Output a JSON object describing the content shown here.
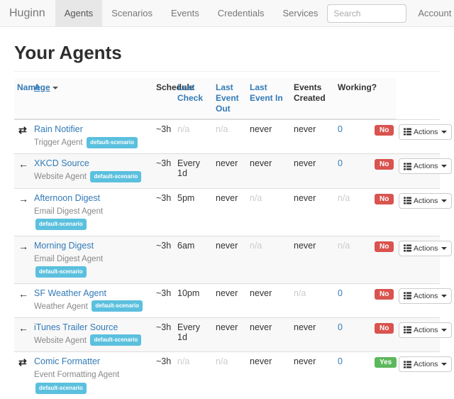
{
  "navbar": {
    "brand": "Huginn",
    "items": [
      {
        "label": "Agents",
        "active": true
      },
      {
        "label": "Scenarios",
        "active": false
      },
      {
        "label": "Events",
        "active": false
      },
      {
        "label": "Credentials",
        "active": false
      },
      {
        "label": "Services",
        "active": false
      }
    ],
    "search_placeholder": "Search",
    "account_label": "Account"
  },
  "page": {
    "title": "Your Agents"
  },
  "table": {
    "headers": [
      {
        "label": "Name",
        "link": true,
        "sorted": false,
        "key": "name"
      },
      {
        "label": "Age",
        "link": true,
        "sorted": true,
        "key": "age"
      },
      {
        "label": "Schedule",
        "link": false,
        "sorted": false,
        "key": "schedule"
      },
      {
        "label": "Last Check",
        "link": true,
        "sorted": false,
        "key": "last-check"
      },
      {
        "label": "Last Event Out",
        "link": true,
        "sorted": false,
        "key": "last-event-out"
      },
      {
        "label": "Last Event In",
        "link": true,
        "sorted": false,
        "key": "last-event-in"
      },
      {
        "label": "Events Created",
        "link": false,
        "sorted": false,
        "key": "events-created"
      },
      {
        "label": "Working?",
        "link": false,
        "sorted": false,
        "key": "working"
      }
    ],
    "actions_label": "Actions",
    "icon_glyphs": {
      "exchange": "⇄",
      "arrow-left": "←",
      "arrow-right": "→"
    },
    "rows": [
      {
        "icon": "exchange",
        "name": "Rain Notifier",
        "type": "Trigger Agent",
        "scenario": "default-scenario",
        "age": "~3h",
        "schedule": "n/a",
        "last_check": "n/a",
        "last_event_out": "never",
        "last_event_in": "never",
        "events_created": "0",
        "working": "No"
      },
      {
        "icon": "arrow-left",
        "name": "XKCD Source",
        "type": "Website Agent",
        "scenario": "default-scenario",
        "age": "~3h",
        "schedule": "Every 1d",
        "last_check": "never",
        "last_event_out": "never",
        "last_event_in": "never",
        "events_created": "0",
        "working": "No"
      },
      {
        "icon": "arrow-right",
        "name": "Afternoon Digest",
        "type": "Email Digest Agent",
        "scenario": "default-scenario",
        "age": "~3h",
        "schedule": "5pm",
        "last_check": "never",
        "last_event_out": "n/a",
        "last_event_in": "never",
        "events_created": "n/a",
        "working": "No"
      },
      {
        "icon": "arrow-right",
        "name": "Morning Digest",
        "type": "Email Digest Agent",
        "scenario": "default-scenario",
        "age": "~3h",
        "schedule": "6am",
        "last_check": "never",
        "last_event_out": "n/a",
        "last_event_in": "never",
        "events_created": "n/a",
        "working": "No"
      },
      {
        "icon": "arrow-left",
        "name": "SF Weather Agent",
        "type": "Weather Agent",
        "scenario": "default-scenario",
        "age": "~3h",
        "schedule": "10pm",
        "last_check": "never",
        "last_event_out": "never",
        "last_event_in": "n/a",
        "events_created": "0",
        "working": "No"
      },
      {
        "icon": "arrow-left",
        "name": "iTunes Trailer Source",
        "type": "Website Agent",
        "scenario": "default-scenario",
        "age": "~3h",
        "schedule": "Every 1d",
        "last_check": "never",
        "last_event_out": "never",
        "last_event_in": "never",
        "events_created": "0",
        "working": "No"
      },
      {
        "icon": "exchange",
        "name": "Comic Formatter",
        "type": "Event Formatting Agent",
        "scenario": "default-scenario",
        "age": "~3h",
        "schedule": "n/a",
        "last_check": "n/a",
        "last_event_out": "never",
        "last_event_in": "never",
        "events_created": "0",
        "working": "Yes"
      }
    ]
  },
  "colors": {
    "accent_link": "#337ab7",
    "badge_info": "#5bc0de",
    "badge_danger": "#d9534f",
    "badge_success": "#5cb85c",
    "navbar_bg": "#f8f8f8"
  }
}
